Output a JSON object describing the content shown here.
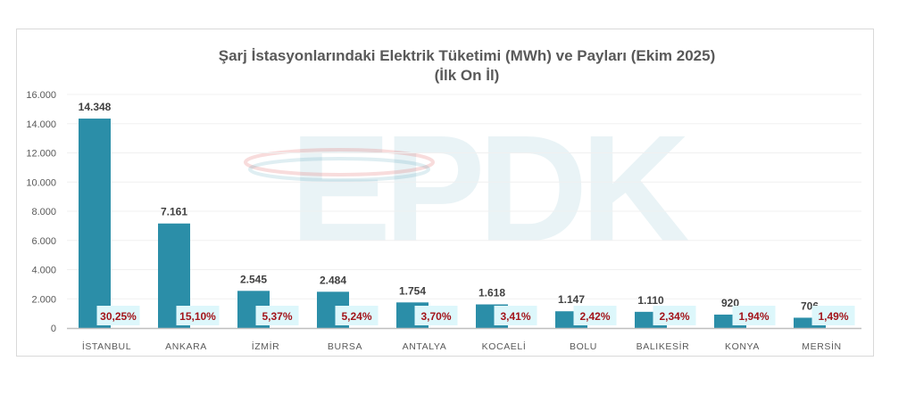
{
  "chart_data": {
    "type": "bar",
    "title": "Şarj İstasyonlarındaki Elektrik Tüketimi (MWh) ve Payları (Ekim 2025)",
    "subtitle": "(İlk On İl)",
    "categories": [
      "İSTANBUL",
      "ANKARA",
      "İZMİR",
      "BURSA",
      "ANTALYA",
      "KOCAELİ",
      "BOLU",
      "BALIKESİR",
      "KONYA",
      "MERSİN"
    ],
    "values": [
      14348,
      7161,
      2545,
      2484,
      1754,
      1618,
      1147,
      1110,
      920,
      706
    ],
    "value_labels": [
      "14.348",
      "7.161",
      "2.545",
      "2.484",
      "1.754",
      "1.618",
      "1.147",
      "1.110",
      "920",
      "706"
    ],
    "share_labels": [
      "30,25%",
      "15,10%",
      "5,37%",
      "5,24%",
      "3,70%",
      "3,41%",
      "2,42%",
      "2,34%",
      "1,94%",
      "1,49%"
    ],
    "ylim": [
      0,
      16000
    ],
    "yticks": [
      0,
      2000,
      4000,
      6000,
      8000,
      10000,
      12000,
      14000,
      16000
    ],
    "ytick_labels": [
      "0",
      "2.000",
      "4.000",
      "6.000",
      "8.000",
      "10.000",
      "12.000",
      "14.000",
      "16.000"
    ],
    "grid": true,
    "bar_color": "#2b8ea8",
    "share_label_bg": "#ddf7fb",
    "share_label_color": "#a3141a",
    "watermark": "EPDK"
  }
}
